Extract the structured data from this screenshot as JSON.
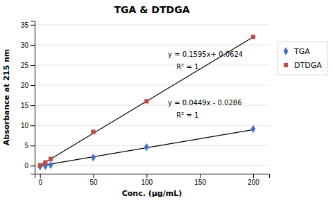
{
  "chart_data": {
    "type": "scatter",
    "title": "TGA & DTDGA",
    "x_label": "Conc. (μg/mL)",
    "y_label": "Absorbance at 215 nm",
    "series": [
      {
        "name": "TGA",
        "color": "#4472C4",
        "marker": "diamond",
        "x": [
          0,
          5,
          10,
          50,
          100,
          200
        ],
        "values": [
          -0.2,
          -0.1,
          0.16,
          2.0,
          4.6,
          9.12
        ]
      },
      {
        "name": "DTDGA",
        "color": "#BE4B48",
        "marker": "square",
        "x": [
          0,
          5,
          10,
          50,
          100,
          200
        ],
        "values": [
          0.06,
          0.8,
          1.65,
          8.4,
          16.0,
          32.0
        ]
      },
      {
        "type": "line",
        "color": "black",
        "x": [
          0,
          200
        ],
        "values": [
          -0.0286,
          8.9514
        ]
      },
      {
        "type": "line",
        "color": "black",
        "x": [
          0,
          200
        ],
        "values": [
          0.0624,
          31.9624
        ]
      }
    ],
    "annotations": [
      {
        "text": "y = 0.1595x+ 0.0624",
        "x": 120,
        "y": 27
      },
      {
        "text": "R² = 1",
        "x": 128,
        "y": 24
      },
      {
        "text": "y = 0.0449x - 0.0286",
        "x": 120,
        "y": 15
      },
      {
        "text": "R² = 1",
        "x": 128,
        "y": 12
      }
    ],
    "xlim": [
      -5,
      215
    ],
    "ylim": [
      -2,
      36
    ],
    "xticks": [
      0,
      50,
      100,
      150,
      200
    ],
    "yticks": [
      0,
      5,
      10,
      15,
      20,
      25,
      30,
      35
    ],
    "grid": true,
    "legend": "right"
  }
}
